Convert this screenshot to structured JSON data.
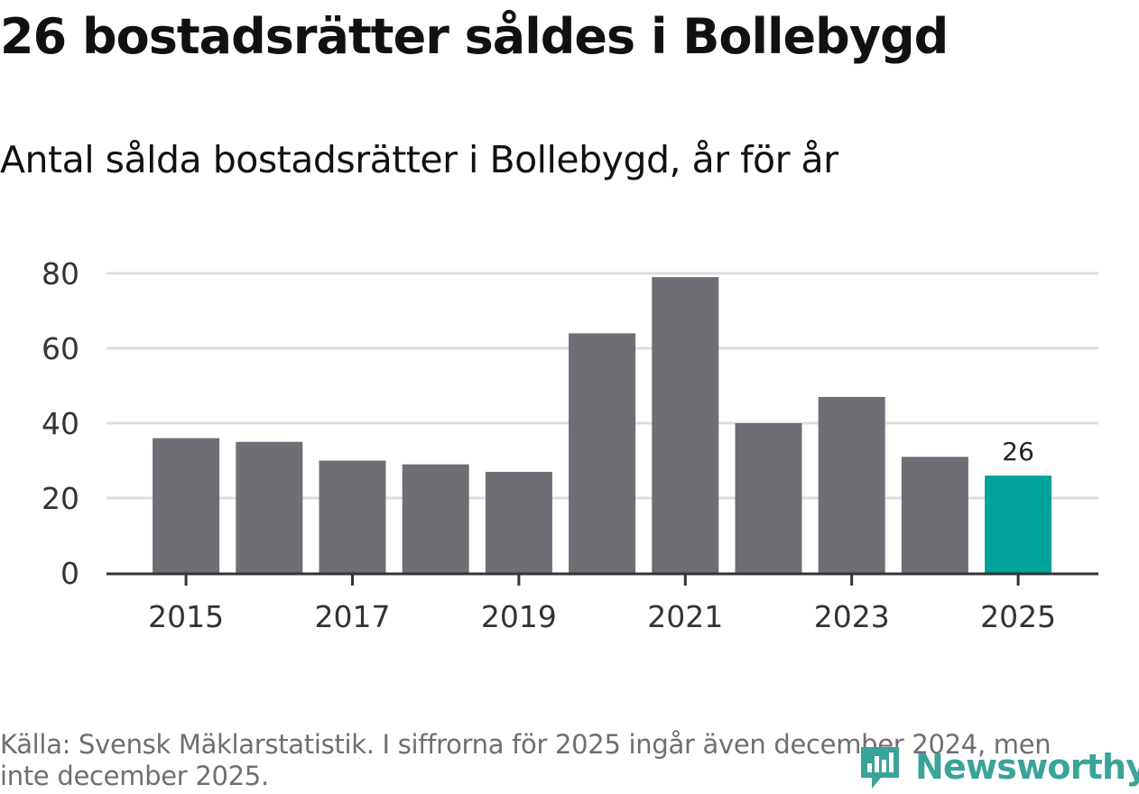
{
  "header": {
    "title": "26 bostadsrätter såldes i Bollebygd",
    "subtitle": "Antal sålda bostadsrätter i Bollebygd, år för år"
  },
  "footer": {
    "source": "Källa: Svensk Mäklarstatistik. I siffrorna för 2025 ingår även december 2024, men inte december 2025.",
    "brand": "Newsworthy"
  },
  "colors": {
    "bar": "#6f6e75",
    "highlight": "#00a39a",
    "grid": "#dddddd",
    "axis": "#333333",
    "brand": "#3aa39a"
  },
  "chart_data": {
    "type": "bar",
    "title": "Antal sålda bostadsrätter i Bollebygd, år för år",
    "xlabel": "",
    "ylabel": "",
    "categories": [
      "2015",
      "2016",
      "2017",
      "2018",
      "2019",
      "2020",
      "2021",
      "2022",
      "2023",
      "2024",
      "2025"
    ],
    "values": [
      36,
      35,
      30,
      29,
      27,
      64,
      79,
      40,
      47,
      31,
      26
    ],
    "x_tick_labels": [
      "2015",
      "2017",
      "2019",
      "2021",
      "2023",
      "2025"
    ],
    "y_ticks": [
      0,
      20,
      40,
      60,
      80
    ],
    "ylim": [
      0,
      80
    ],
    "grid": true,
    "highlight_category": "2025",
    "annotations": [
      {
        "category": "2025",
        "text": "26"
      }
    ]
  }
}
